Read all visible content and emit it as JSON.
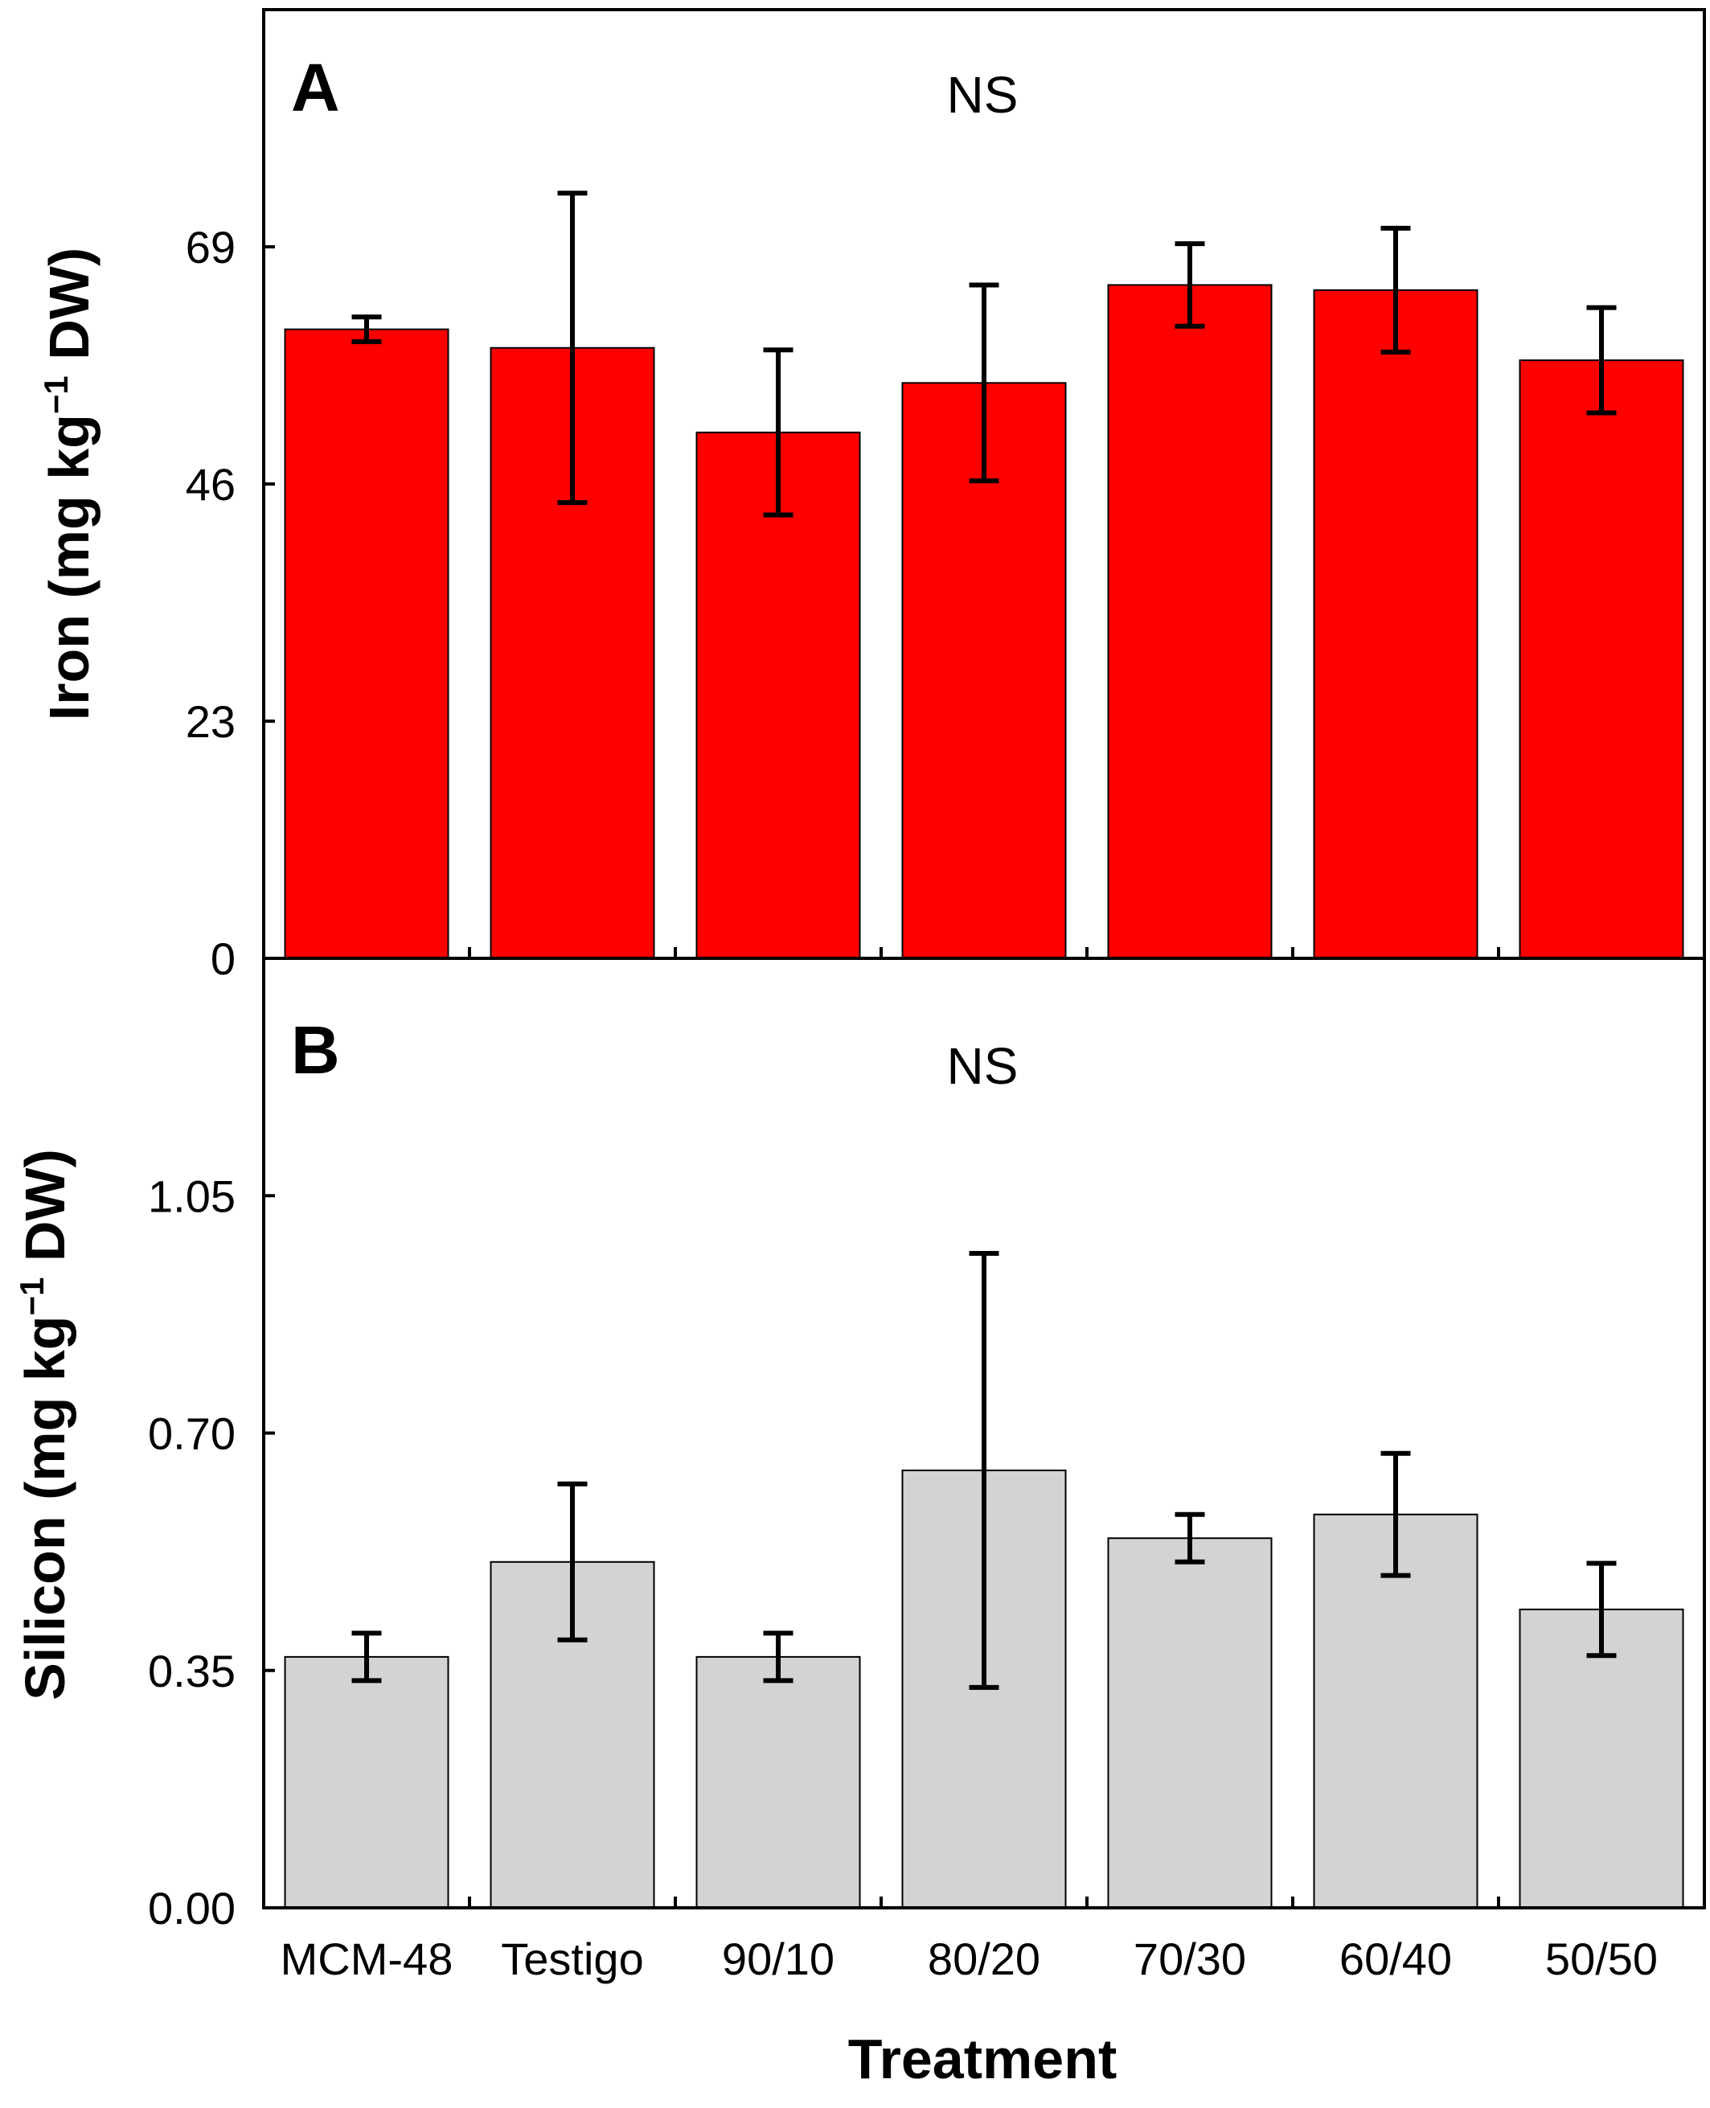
{
  "chart_data": [
    {
      "type": "bar",
      "panel": "A",
      "significance": "NS",
      "ylabel_main": "Iron (mg kg",
      "ylabel_sup": "−1",
      "ylabel_end": " DW)",
      "ylim": [
        0,
        92
      ],
      "yticks": [
        0,
        23,
        46,
        69
      ],
      "ytick_labels": [
        "0",
        "23",
        "46",
        "69"
      ],
      "categories": [
        "MCM-48",
        "Testigo",
        "90/10",
        "80/20",
        "70/30",
        "60/40",
        "50/50"
      ],
      "values": [
        61.0,
        59.2,
        51.0,
        55.8,
        65.3,
        64.8,
        58.0
      ],
      "errors": [
        1.2,
        15.0,
        8.0,
        9.5,
        4.0,
        6.0,
        5.1
      ],
      "bar_color": "#ff0000"
    },
    {
      "type": "bar",
      "panel": "B",
      "significance": "NS",
      "ylabel_main": "Silicon (mg kg",
      "ylabel_sup": "−1",
      "ylabel_end": " DW)",
      "ylim": [
        0,
        1.4
      ],
      "yticks": [
        0,
        0.35,
        0.7,
        1.05
      ],
      "ytick_labels": [
        "0.00",
        "0.35",
        "0.70",
        "1.05"
      ],
      "categories": [
        "MCM-48",
        "Testigo",
        "90/10",
        "80/20",
        "70/30",
        "60/40",
        "50/50"
      ],
      "values": [
        0.37,
        0.51,
        0.37,
        0.645,
        0.545,
        0.58,
        0.44
      ],
      "errors": [
        0.035,
        0.115,
        0.035,
        0.32,
        0.035,
        0.09,
        0.068
      ],
      "bar_color": "#d3d3d3"
    }
  ],
  "xlabel": "Treatment"
}
